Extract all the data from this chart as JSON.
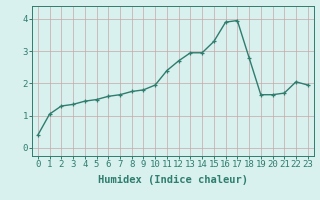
{
  "x": [
    0,
    1,
    2,
    3,
    4,
    5,
    6,
    7,
    8,
    9,
    10,
    11,
    12,
    13,
    14,
    15,
    16,
    17,
    18,
    19,
    20,
    21,
    22,
    23
  ],
  "y": [
    0.4,
    1.05,
    1.3,
    1.35,
    1.45,
    1.5,
    1.6,
    1.65,
    1.75,
    1.8,
    1.95,
    2.4,
    2.7,
    2.95,
    2.95,
    3.3,
    3.9,
    3.95,
    2.8,
    1.65,
    1.65,
    1.7,
    2.05,
    1.95
  ],
  "line_color": "#2e7d6e",
  "marker": "+",
  "marker_size": 3,
  "linewidth": 1.0,
  "markeredgewidth": 0.9,
  "xlabel": "Humidex (Indice chaleur)",
  "bg_color": "#d8f0ee",
  "grid_color": "#c8a8a8",
  "xlim": [
    -0.5,
    23.5
  ],
  "ylim": [
    -0.25,
    4.4
  ],
  "yticks": [
    0,
    1,
    2,
    3,
    4
  ],
  "xticks": [
    0,
    1,
    2,
    3,
    4,
    5,
    6,
    7,
    8,
    9,
    10,
    11,
    12,
    13,
    14,
    15,
    16,
    17,
    18,
    19,
    20,
    21,
    22,
    23
  ],
  "xlabel_fontsize": 7.5,
  "tick_fontsize": 6.5,
  "label_color": "#2e7d6e"
}
